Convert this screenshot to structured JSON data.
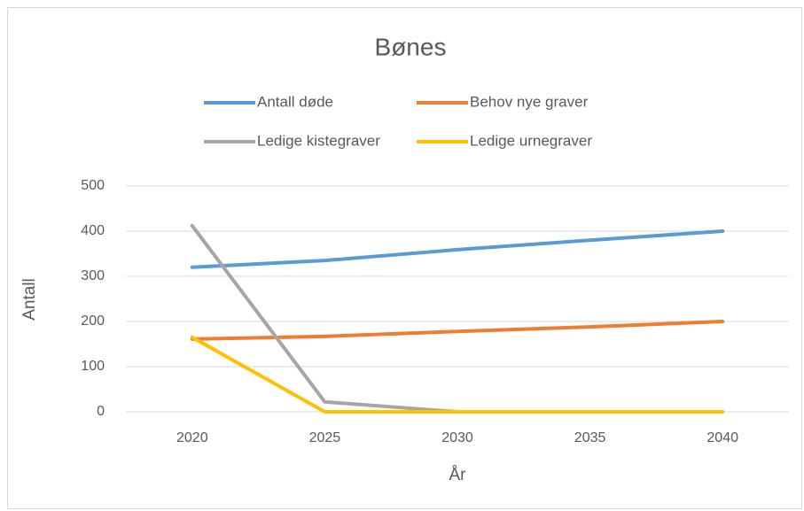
{
  "chart_data": {
    "type": "line",
    "title": "Bønes",
    "x_label": "År",
    "y_label": "Antall",
    "categories": [
      "2020",
      "2025",
      "2030",
      "2035",
      "2040"
    ],
    "series": [
      {
        "name": "Antall døde",
        "color": "#5b9bd5",
        "values": [
          320,
          335,
          359,
          380,
          400
        ]
      },
      {
        "name": "Behov nye graver",
        "color": "#ed7d31",
        "values": [
          161,
          167,
          178,
          188,
          200
        ]
      },
      {
        "name": "Ledige kistegraver",
        "color": "#a5a5a5",
        "values": [
          412,
          22,
          0,
          0,
          0
        ]
      },
      {
        "name": "Ledige urnegraver",
        "color": "#ffc000",
        "values": [
          165,
          0,
          0,
          0,
          0
        ]
      }
    ],
    "ylim": [
      0,
      500
    ],
    "yticks": [
      0,
      100,
      200,
      300,
      400,
      500
    ],
    "grid": true,
    "legend": "top"
  }
}
